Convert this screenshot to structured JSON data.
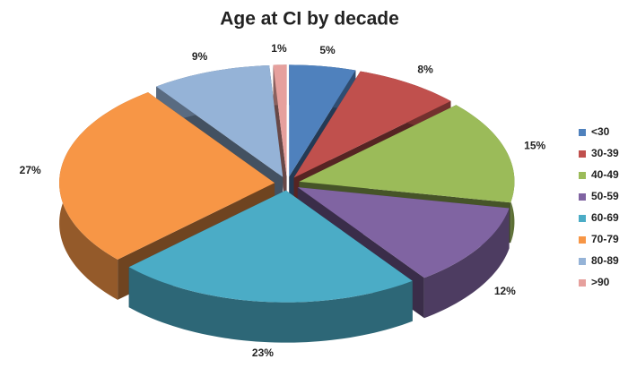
{
  "chart_data": {
    "type": "pie",
    "title": "Age at CI by decade",
    "categories": [
      "<30",
      "30-39",
      "40-49",
      "50-59",
      "60-69",
      "70-79",
      "80-89",
      ">90"
    ],
    "values": [
      5,
      8,
      15,
      12,
      23,
      27,
      9,
      1
    ],
    "value_labels": [
      "5%",
      "8%",
      "15%",
      "12%",
      "23%",
      "27%",
      "9%",
      "1%"
    ],
    "colors": [
      "#4f81bd",
      "#c0504d",
      "#9bbb59",
      "#8064a2",
      "#4bacc6",
      "#f79646",
      "#95b3d7",
      "#e6a09d"
    ],
    "legend": "right"
  }
}
